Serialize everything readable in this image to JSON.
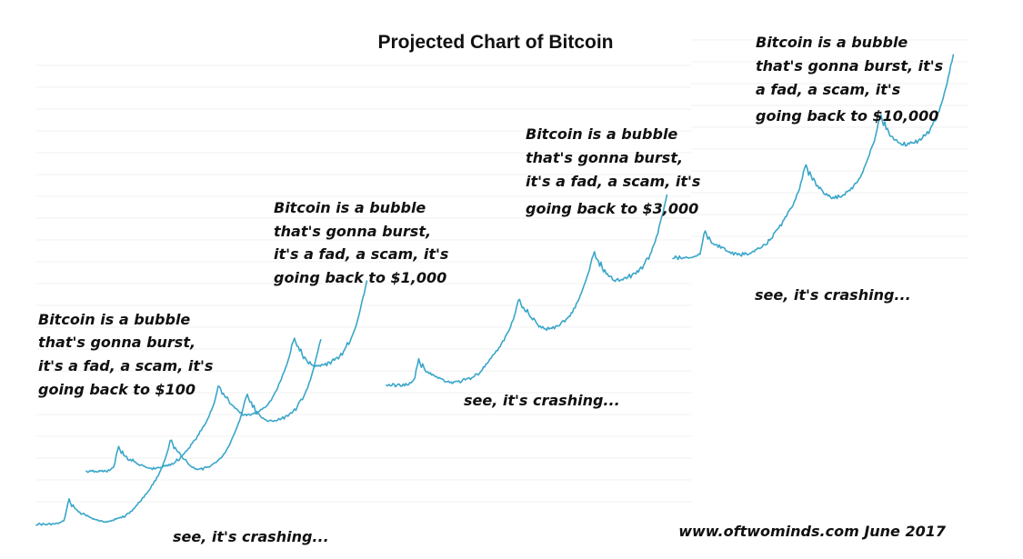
{
  "colors": {
    "line": "#3aa6c9",
    "text": "#111111",
    "grid": "#f2f2f2"
  },
  "chart_data": {
    "type": "line",
    "title": "Projected Chart of Bitcoin",
    "credit": "www.oftwominds.com  June 2017",
    "grid": true,
    "y_axis_labels": false,
    "x_axis_labels": false,
    "cycles": [
      {
        "target": "$100",
        "bubble_note": [
          "Bitcoin is a bubble",
          "that's gonna burst,",
          "it's a fad, a scam, it's",
          "going back to $100"
        ],
        "crash_note": "see, it's crashing...",
        "relative_values": [
          2,
          3,
          4,
          3,
          2,
          4,
          3,
          2,
          2,
          3,
          4,
          3,
          4,
          3,
          4,
          5,
          4,
          6,
          7,
          8,
          10,
          14,
          24,
          42,
          58,
          70,
          60,
          50,
          56,
          48,
          42,
          40,
          36,
          34,
          32,
          30,
          33,
          30,
          27,
          26,
          23,
          21,
          20,
          18,
          17,
          15,
          14,
          13,
          12,
          11,
          11,
          10,
          11,
          10,
          12,
          11,
          13,
          12,
          14,
          15,
          17,
          16,
          18,
          19,
          22,
          21,
          24,
          23,
          27,
          30,
          33,
          32,
          36,
          40,
          44,
          48,
          52,
          55,
          60,
          64,
          68,
          73,
          77,
          81,
          85,
          90,
          95,
          100,
          106,
          111,
          117,
          122,
          128,
          135,
          142,
          150,
          158,
          166,
          175,
          185,
          196,
          210,
          225,
          228,
          218,
          205,
          210,
          200,
          195,
          198,
          190,
          182,
          178,
          175,
          176,
          170,
          166,
          162,
          158,
          156,
          155,
          153,
          152,
          150,
          150,
          151,
          152,
          150,
          153,
          155,
          154,
          156,
          158,
          160,
          162,
          165,
          168,
          170,
          172,
          175,
          178,
          182,
          186,
          191,
          196,
          202,
          208,
          215,
          222,
          230,
          238,
          246,
          255,
          264,
          273,
          282,
          292,
          305,
          318,
          332,
          345,
          352,
          340,
          330,
          332,
          318,
          322,
          308,
          300,
          302,
          296,
          292,
          288,
          290,
          285,
          282,
          280,
          278,
          280,
          282,
          279,
          281,
          283,
          280,
          284,
          286,
          282,
          287,
          290,
          286,
          292,
          296,
          293,
          298,
          303,
          300,
          306,
          312,
          310,
          318,
          326,
          332,
          338,
          336,
          345,
          354,
          362,
          370,
          380,
          390,
          402,
          415,
          428,
          442,
          456,
          470,
          486,
          500
        ]
      },
      {
        "target": "$1,000",
        "bubble_note": [
          "Bitcoin is a bubble",
          "that's gonna burst,",
          "it's a fad, a scam, it's",
          "going back to $1,000"
        ],
        "crash_note": "see, it's crashing..."
      },
      {
        "target": "$3,000",
        "bubble_note": [
          "Bitcoin is a bubble",
          "that's gonna burst,",
          "it's a fad, a scam, it's",
          "going back to $3,000"
        ],
        "crash_note": "see, it's crashing..."
      },
      {
        "target": "$10,000",
        "bubble_note": [
          "Bitcoin is a bubble",
          "that's gonna burst, it's",
          "a fad, a scam, it's",
          "going back to $10,000"
        ]
      }
    ]
  }
}
